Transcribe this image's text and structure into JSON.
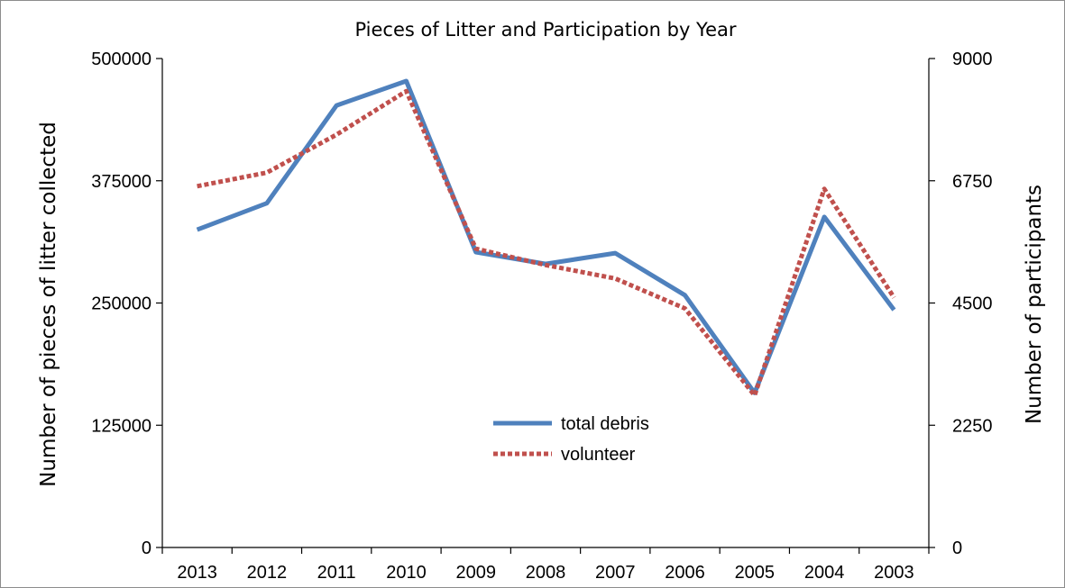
{
  "chart_data": {
    "type": "line",
    "title": "Pieces of Litter and Participation by Year",
    "categories": [
      "2013",
      "2012",
      "2011",
      "2010",
      "2009",
      "2008",
      "2007",
      "2006",
      "2005",
      "2004",
      "2003"
    ],
    "y_left": {
      "label": "Number of pieces of litter collected",
      "ticks": [
        "0",
        "125000",
        "250000",
        "375000",
        "500000"
      ],
      "ylim": [
        0,
        500000
      ]
    },
    "y_right": {
      "label": "Number of participants",
      "ticks": [
        "0",
        "2250",
        "4500",
        "6750",
        "9000"
      ],
      "ylim": [
        0,
        9000
      ]
    },
    "series": [
      {
        "name": "total debris",
        "axis": "left",
        "color": "#4F81BD",
        "style": "solid",
        "values": [
          325000,
          352000,
          452000,
          477000,
          302000,
          290000,
          301000,
          258000,
          158000,
          338000,
          243000
        ]
      },
      {
        "name": "volunteer",
        "axis": "right",
        "color": "#C0504D",
        "style": "dotted",
        "values": [
          6650,
          6900,
          7600,
          8400,
          5500,
          5200,
          4950,
          4400,
          2800,
          6600,
          4600
        ]
      }
    ],
    "grid": false,
    "legend_position": "center"
  }
}
